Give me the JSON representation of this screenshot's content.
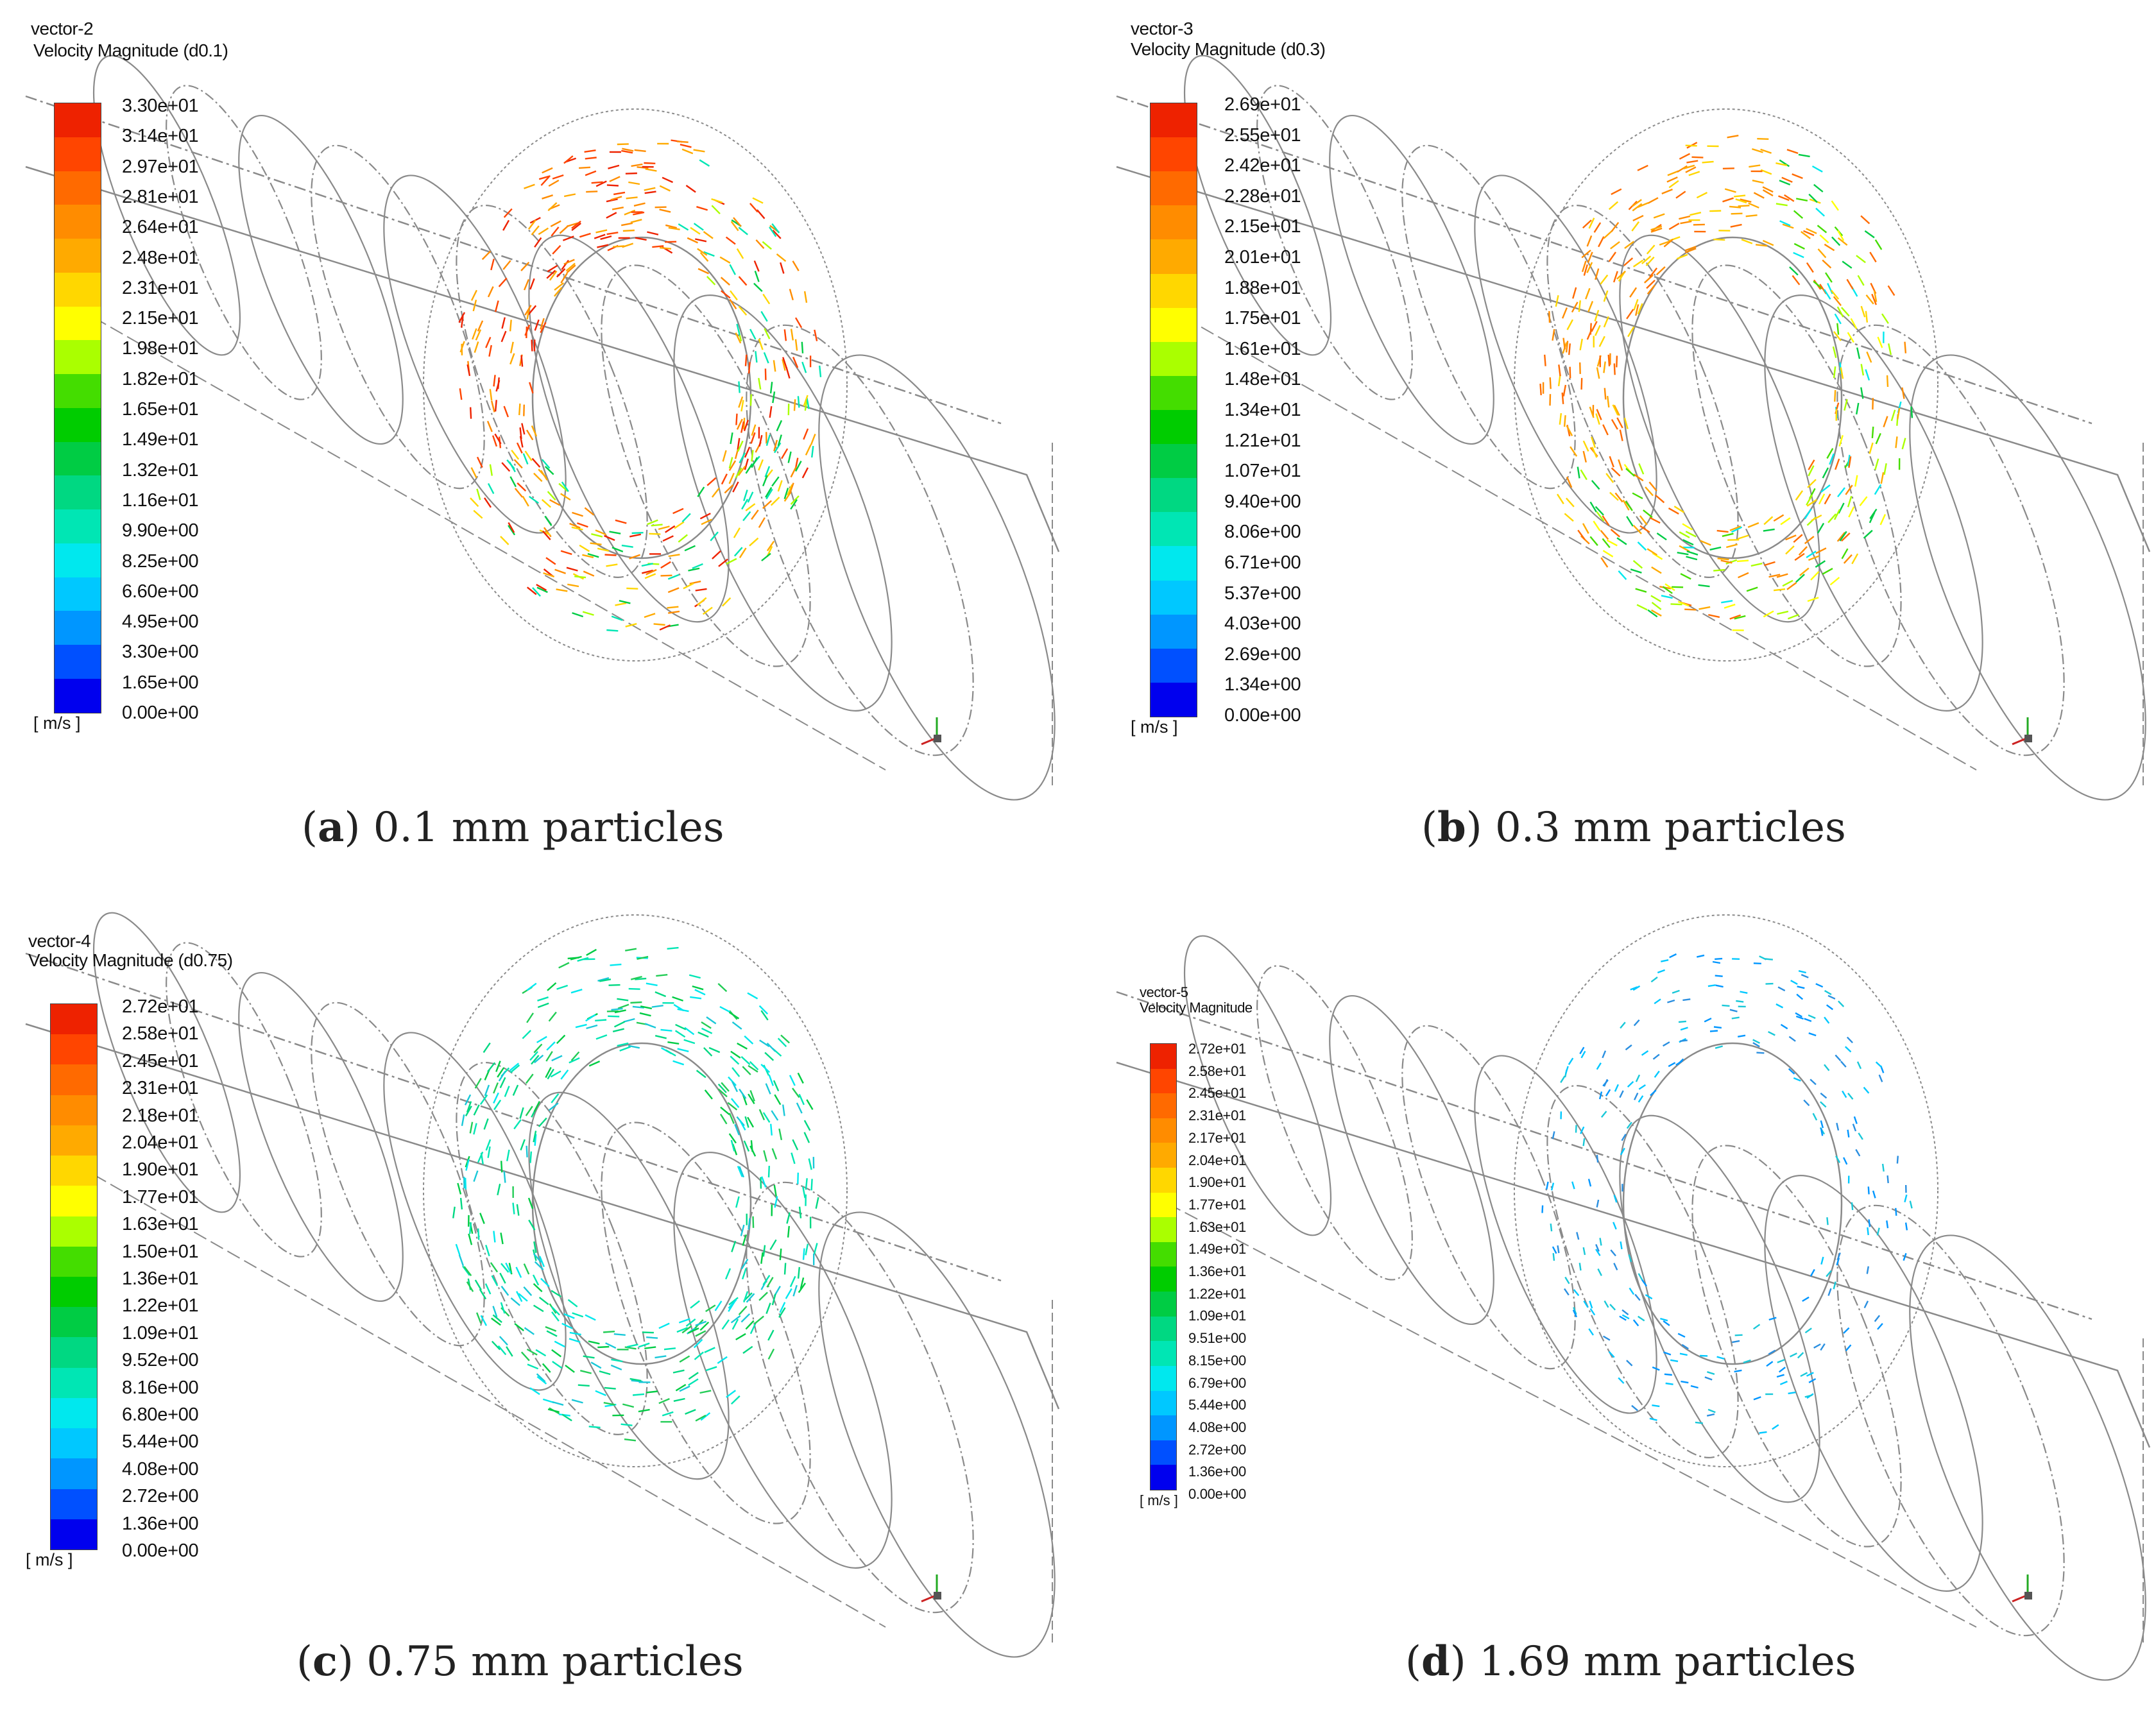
{
  "colors": {
    "scale": [
      "#0000ee",
      "#0050ff",
      "#0096ff",
      "#00c8ff",
      "#00e8ee",
      "#00e6b4",
      "#00d882",
      "#00cc44",
      "#00cc00",
      "#44dd00",
      "#aaff00",
      "#ffff00",
      "#ffd700",
      "#ffaa00",
      "#ff8c00",
      "#ff6a00",
      "#ff4500",
      "#ee2200"
    ],
    "wire": "#8a8a8a",
    "arrow_green": "#22cc55",
    "arrow_cyan": "#19c8d8",
    "arrow_blue": "#2a8fe0"
  },
  "panels": [
    {
      "id": "a",
      "vector_name": "vector-2",
      "quantity": "Velocity Magnitude (d0.1)",
      "unit": "[ m/s ]",
      "ticks": [
        "3.30e+01",
        "3.14e+01",
        "2.97e+01",
        "2.81e+01",
        "2.64e+01",
        "2.48e+01",
        "2.31e+01",
        "2.15e+01",
        "1.98e+01",
        "1.82e+01",
        "1.65e+01",
        "1.49e+01",
        "1.32e+01",
        "1.16e+01",
        "9.90e+00",
        "8.25e+00",
        "6.60e+00",
        "4.95e+00",
        "3.30e+00",
        "1.65e+00",
        "0.00e+00"
      ],
      "caption_letter": "a",
      "caption_text": " 0.1 mm particles",
      "arrow_palette": [
        "#ee2200",
        "#ff4500",
        "#ff8c00",
        "#ffaa00",
        "#ffd700",
        "#aaff00",
        "#00cc44",
        "#00e6b4"
      ]
    },
    {
      "id": "b",
      "vector_name": "vector-3",
      "quantity": "Velocity Magnitude (d0.3)",
      "unit": "[ m/s ]",
      "ticks": [
        "2.69e+01",
        "2.55e+01",
        "2.42e+01",
        "2.28e+01",
        "2.15e+01",
        "2.01e+01",
        "1.88e+01",
        "1.75e+01",
        "1.61e+01",
        "1.48e+01",
        "1.34e+01",
        "1.21e+01",
        "1.07e+01",
        "9.40e+00",
        "8.06e+00",
        "6.71e+00",
        "5.37e+00",
        "4.03e+00",
        "2.69e+00",
        "1.34e+00",
        "0.00e+00"
      ],
      "caption_letter": "b",
      "caption_text": " 0.3 mm particles",
      "arrow_palette": [
        "#ff6a00",
        "#ff8c00",
        "#ffaa00",
        "#ffd700",
        "#ffff00",
        "#aaff00",
        "#44dd00",
        "#00cc44",
        "#00e8ee"
      ]
    },
    {
      "id": "c",
      "vector_name": "vector-4",
      "quantity": "Velocity Magnitude (d0.75)",
      "unit": "[ m/s ]",
      "ticks": [
        "2.72e+01",
        "2.58e+01",
        "2.45e+01",
        "2.31e+01",
        "2.18e+01",
        "2.04e+01",
        "1.90e+01",
        "1.77e+01",
        "1.63e+01",
        "1.50e+01",
        "1.36e+01",
        "1.22e+01",
        "1.09e+01",
        "9.52e+00",
        "8.16e+00",
        "6.80e+00",
        "5.44e+00",
        "4.08e+00",
        "2.72e+00",
        "1.36e+00",
        "0.00e+00"
      ],
      "caption_letter": "c",
      "caption_text": " 0.75 mm particles",
      "arrow_palette": [
        "#00cc44",
        "#00d882",
        "#22cc55",
        "#00e6b4",
        "#00e8ee",
        "#19c8d8"
      ]
    },
    {
      "id": "d",
      "vector_name": "vector-5",
      "quantity": "Velocity Magnitude",
      "unit": "[ m/s ]",
      "ticks": [
        "2.72e+01",
        "2.58e+01",
        "2.45e+01",
        "2.31e+01",
        "2.17e+01",
        "2.04e+01",
        "1.90e+01",
        "1.77e+01",
        "1.63e+01",
        "1.49e+01",
        "1.36e+01",
        "1.22e+01",
        "1.09e+01",
        "9.51e+00",
        "8.15e+00",
        "6.79e+00",
        "5.44e+00",
        "4.08e+00",
        "2.72e+00",
        "1.36e+00",
        "0.00e+00"
      ],
      "caption_letter": "d",
      "caption_text": " 1.69 mm particles",
      "arrow_palette": [
        "#00c8ff",
        "#0096ff",
        "#19c8d8",
        "#2a8fe0"
      ]
    }
  ]
}
